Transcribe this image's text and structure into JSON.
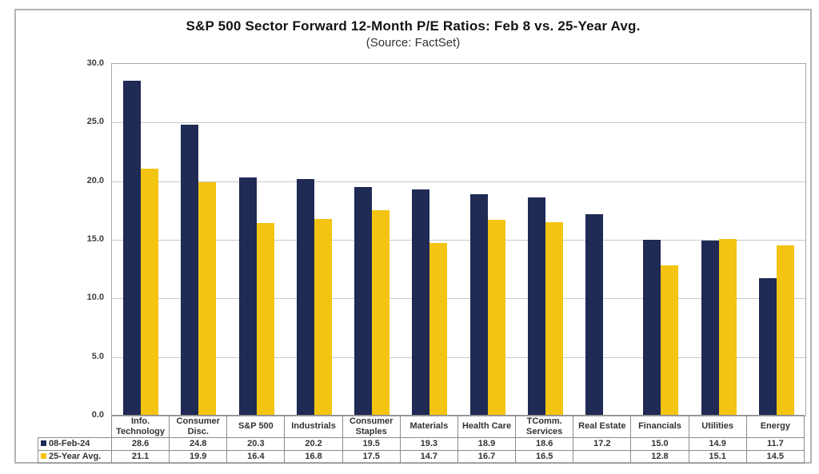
{
  "chart_data": {
    "type": "bar",
    "title": "S&P 500 Sector Forward 12-Month P/E Ratios: Feb 8 vs. 25-Year Avg.",
    "subtitle": "(Source: FactSet)",
    "categories": [
      "Info. Technology",
      "Consumer Disc.",
      "S&P 500",
      "Industrials",
      "Consumer Staples",
      "Materials",
      "Health Care",
      "TComm. Services",
      "Real Estate",
      "Financials",
      "Utilities",
      "Energy"
    ],
    "series": [
      {
        "name": "08-Feb-24",
        "color": "#1f2a55",
        "values": [
          28.6,
          24.8,
          20.3,
          20.2,
          19.5,
          19.3,
          18.9,
          18.6,
          17.2,
          15.0,
          14.9,
          11.7
        ]
      },
      {
        "name": "25-Year Avg.",
        "color": "#f3c411",
        "values": [
          21.1,
          19.9,
          16.4,
          16.8,
          17.5,
          14.7,
          16.7,
          16.5,
          null,
          12.8,
          15.1,
          14.5
        ]
      }
    ],
    "ylim": [
      0,
      30
    ],
    "ytick_step": 5,
    "ytick_labels": [
      "0.0",
      "5.0",
      "10.0",
      "15.0",
      "20.0",
      "25.0",
      "30.0"
    ],
    "grid": "horizontal",
    "legend_position": "table-left",
    "colors": {
      "grid_line": "#c9c9c9",
      "plot_border": "#a6a6a6",
      "table_border": "#8c8c8c",
      "frame_border": "#b3b3b3",
      "text": "#333333"
    }
  }
}
